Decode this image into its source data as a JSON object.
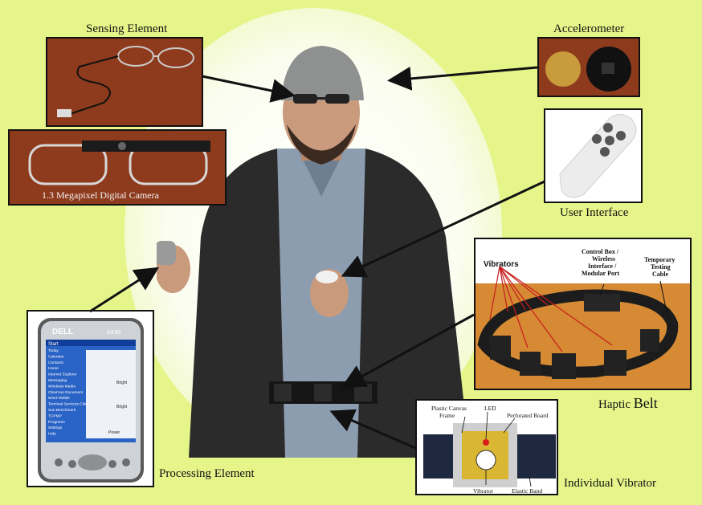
{
  "labels": {
    "sensing_element": "Sensing Element",
    "accelerometer": "Accelerometer",
    "camera": "1.3 Megapixel Digital Camera",
    "user_interface": "User Interface",
    "haptic_belt_prefix": "Haptic ",
    "haptic_belt_suffix": "Belt",
    "processing_element": "Processing Element",
    "individual_vibrator": "Individual Vibrator"
  },
  "belt_annotations": {
    "vibrators": "Vibrators",
    "control_box": "Control Box / Wireless Interface / Modular Port",
    "control_box_lines": [
      "Control Box /",
      "Wireless",
      "Interface /",
      "Modular Port"
    ],
    "testing_cable_lines": [
      "Temporary",
      "Testing",
      "Cable"
    ]
  },
  "vibrator_annotations": {
    "canvas_frame_lines": [
      "Plastic Canvas",
      "Frame"
    ],
    "led": "LED",
    "perforated_board": "Perforated Board",
    "vibrator": "Vibrator",
    "elastic_band": "Elastic Band"
  },
  "pda": {
    "brand": "DELL",
    "model": "AXIM",
    "start": "Start",
    "menu": [
      "Today",
      "Calendar",
      "Contacts",
      "Home",
      "Internet Explorer",
      "Messaging",
      "Windows Media",
      "ClearVue Document",
      "Word Mobile",
      "Terminal Services Client",
      "Sun Benchmark",
      "TCPMP",
      "Programs",
      "Settings",
      "Help"
    ],
    "side": [
      "Bright",
      "Bright"
    ],
    "footer": "Power"
  },
  "colors": {
    "background": "#e6f58a",
    "arrow": "#111111",
    "led": "#d81b1b"
  }
}
